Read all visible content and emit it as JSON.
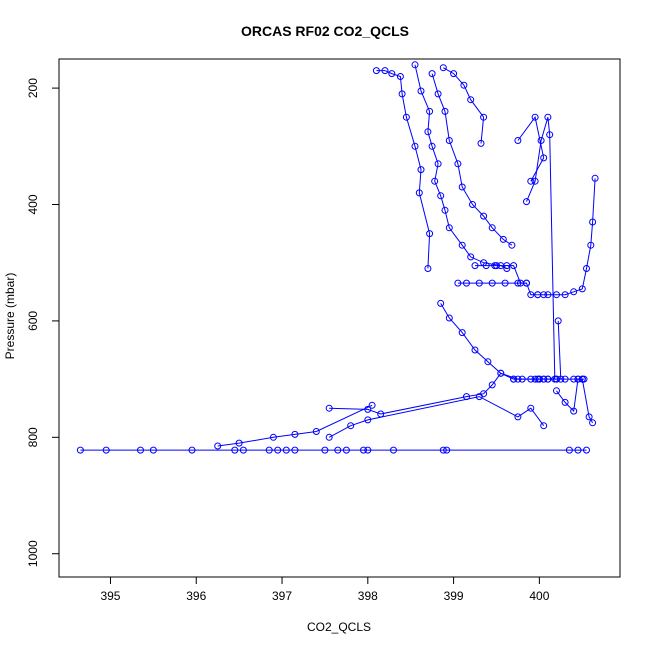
{
  "chart_data": {
    "type": "scatter",
    "title": "ORCAS RF02 CO2_QCLS",
    "xlabel": "CO2_QCLS",
    "ylabel": "Pressure (mbar)",
    "xlim": [
      394.4,
      400.94
    ],
    "ylim": [
      1040,
      150
    ],
    "y_reversed": true,
    "grid": false,
    "legend": "none",
    "point_shape": "open-circle",
    "line_color": "#0000ff",
    "x_ticks": [
      395,
      396,
      397,
      398,
      399,
      400
    ],
    "y_ticks": [
      200,
      400,
      600,
      800,
      1000
    ],
    "series": [
      {
        "x": [
          398.55,
          398.62,
          398.72,
          398.7,
          398.75,
          398.82,
          398.78,
          398.85,
          398.9,
          398.95,
          399.1,
          399.2,
          399.35,
          399.55,
          399.62
        ],
        "y": [
          160,
          205,
          240,
          275,
          300,
          330,
          360,
          385,
          410,
          440,
          470,
          490,
          500,
          505,
          510
        ]
      },
      {
        "x": [
          398.1,
          398.2,
          398.28,
          398.38,
          398.4,
          398.45,
          398.55,
          398.62,
          398.6,
          398.72,
          398.7
        ],
        "y": [
          170,
          170,
          175,
          180,
          210,
          250,
          300,
          340,
          380,
          450,
          510
        ]
      },
      {
        "x": [
          398.75,
          398.82,
          398.9,
          398.95,
          399.05,
          399.1,
          399.22,
          399.35,
          399.45,
          399.58,
          399.68
        ],
        "y": [
          175,
          210,
          240,
          290,
          330,
          370,
          400,
          420,
          440,
          460,
          470
        ]
      },
      {
        "x": [
          398.88,
          399.0,
          399.12,
          399.2,
          399.35,
          399.32
        ],
        "y": [
          165,
          175,
          195,
          220,
          250,
          295
        ]
      },
      {
        "x": [
          399.25,
          399.38,
          399.48,
          399.5,
          399.62,
          399.7,
          399.78,
          399.85,
          399.9,
          399.98
        ],
        "y": [
          505,
          505,
          505,
          505,
          505,
          505,
          535,
          535,
          555,
          555
        ]
      },
      {
        "x": [
          399.05,
          399.15,
          399.3,
          399.45,
          399.6,
          399.75,
          399.85
        ],
        "y": [
          535,
          535,
          535,
          535,
          535,
          535,
          535
        ]
      },
      {
        "x": [
          398.85,
          398.95,
          399.1,
          399.25,
          399.4,
          399.55,
          399.75
        ],
        "y": [
          570,
          595,
          620,
          650,
          670,
          690,
          700
        ]
      },
      {
        "x": [
          399.98,
          400.05,
          400.1,
          400.2,
          400.3,
          400.4,
          400.5,
          400.55,
          400.6,
          400.62,
          400.65
        ],
        "y": [
          555,
          555,
          555,
          555,
          555,
          550,
          545,
          510,
          470,
          430,
          355
        ]
      },
      {
        "x": [
          399.7,
          399.8,
          399.9,
          399.95,
          400.0,
          400.05,
          400.1,
          400.2,
          400.3,
          400.4,
          400.45,
          400.5,
          400.52
        ],
        "y": [
          700,
          700,
          700,
          700,
          700,
          700,
          700,
          700,
          700,
          700,
          700,
          700,
          700
        ]
      },
      {
        "x": [
          399.98,
          400.05,
          400.1,
          400.2,
          400.25,
          400.22
        ],
        "y": [
          700,
          700,
          700,
          700,
          700,
          600
        ]
      },
      {
        "x": [
          400.2,
          400.3,
          400.4,
          400.45,
          400.5,
          400.58,
          400.62
        ],
        "y": [
          720,
          740,
          755,
          700,
          700,
          765,
          775
        ]
      },
      {
        "x": [
          397.55,
          398.0,
          398.15,
          399.15,
          399.35,
          399.45,
          399.55,
          399.7,
          400.0
        ],
        "y": [
          750,
          752,
          760,
          730,
          725,
          710,
          690,
          700,
          700
        ]
      },
      {
        "x": [
          397.55,
          397.8,
          398.0,
          399.3,
          399.75,
          399.9,
          400.05
        ],
        "y": [
          800,
          780,
          770,
          730,
          765,
          750,
          780
        ]
      },
      {
        "x": [
          396.25,
          396.5,
          396.9,
          397.15,
          397.4,
          398.05
        ],
        "y": [
          815,
          810,
          800,
          795,
          790,
          745
        ]
      },
      {
        "x": [
          394.65,
          394.95,
          395.35,
          395.5,
          395.95,
          396.45,
          396.55,
          396.85,
          396.95,
          397.05,
          397.15,
          397.5,
          397.65,
          397.75,
          397.95,
          398.0,
          398.3,
          398.88,
          398.92,
          400.35,
          400.45,
          400.55
        ],
        "y": [
          822,
          822,
          822,
          822,
          822,
          822,
          822,
          822,
          822,
          822,
          822,
          822,
          822,
          822,
          822,
          822,
          822,
          822,
          822,
          822,
          822,
          822
        ]
      },
      {
        "x": [
          399.75,
          399.95,
          400.05,
          399.9
        ],
        "y": [
          290,
          250,
          320,
          360
        ]
      },
      {
        "x": [
          399.85,
          399.95,
          400.02,
          400.1,
          400.12,
          400.18
        ],
        "y": [
          395,
          360,
          290,
          250,
          280,
          700
        ]
      }
    ]
  }
}
